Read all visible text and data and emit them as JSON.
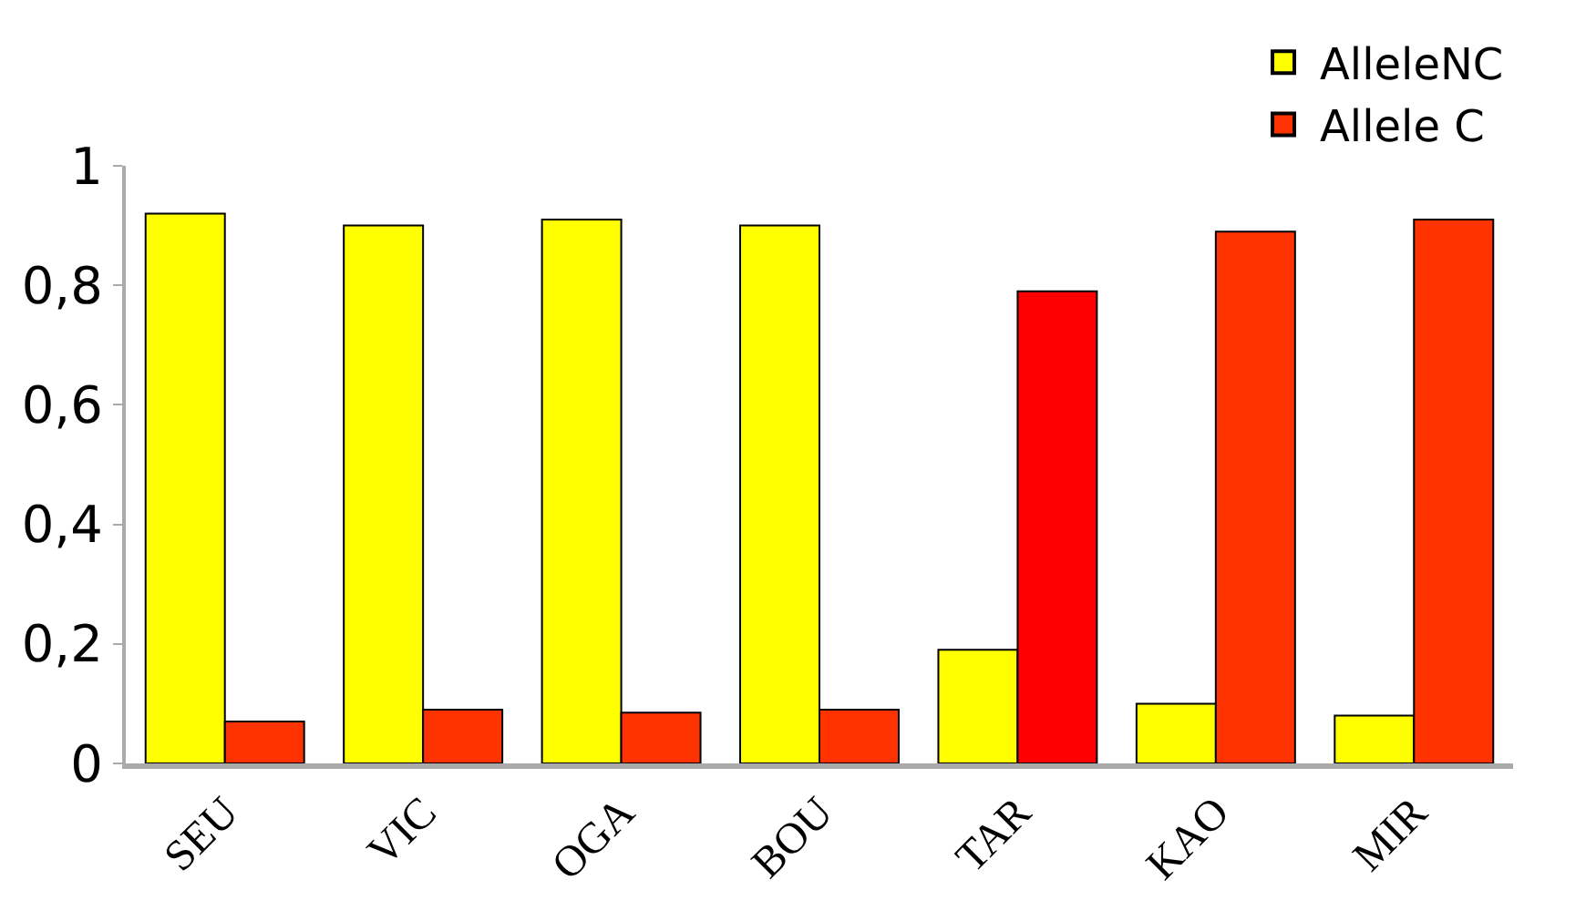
{
  "chart_data": {
    "type": "bar",
    "categories": [
      "SEU",
      "VIC",
      "OGA",
      "BOU",
      "TAR",
      "KAO",
      "MIR"
    ],
    "series": [
      {
        "name": "AlleleNC",
        "color": "#ffff00",
        "values": [
          0.92,
          0.9,
          0.91,
          0.9,
          0.19,
          0.1,
          0.08
        ]
      },
      {
        "name": "Allele C",
        "color": "#ff3300",
        "colors": [
          "#ff3300",
          "#ff3300",
          "#ff3300",
          "#ff3300",
          "#ff0000",
          "#ff3300",
          "#ff3300"
        ],
        "values": [
          0.07,
          0.09,
          0.085,
          0.09,
          0.79,
          0.89,
          0.91
        ]
      }
    ],
    "ylim": [
      0,
      1
    ],
    "yticks": [
      0,
      {
        "value": 0.2,
        "label": "0,2"
      },
      {
        "value": 0.4,
        "label": "0,4"
      },
      {
        "value": 0.6,
        "label": "0,6"
      },
      {
        "value": 0.8,
        "label": "0,8"
      },
      1
    ],
    "legend": "top right"
  }
}
